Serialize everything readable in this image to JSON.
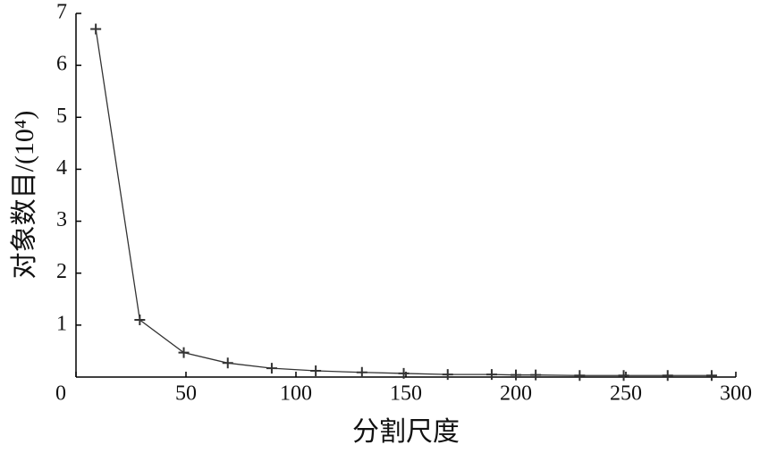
{
  "chart_data": {
    "type": "line",
    "x_label": "分割尺度",
    "y_label": "对象数目/(10⁴)",
    "x": [
      9,
      29,
      49,
      69,
      89,
      109,
      130,
      149,
      169,
      189,
      200,
      209,
      229,
      249,
      269,
      289
    ],
    "series": [
      {
        "color": "#333333",
        "values": [
          6.7,
          1.1,
          0.47,
          0.27,
          0.17,
          0.12,
          0.09,
          0.07,
          0.05,
          0.05,
          0.04,
          0.04,
          0.03,
          0.03,
          0.03,
          0.03
        ]
      }
    ],
    "xlim": [
      0,
      300
    ],
    "xticks": [
      0,
      50,
      100,
      150,
      200,
      250,
      300
    ],
    "ylim": [
      0,
      7
    ],
    "yticks": [
      1,
      2,
      3,
      4,
      5,
      6,
      7
    ],
    "grid": false
  }
}
